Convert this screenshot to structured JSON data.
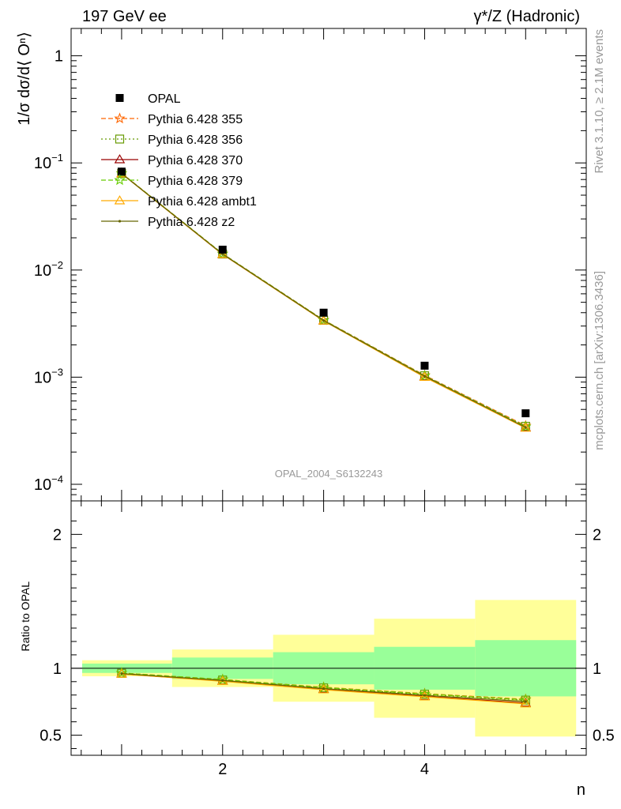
{
  "header": {
    "left": "197 GeV ee",
    "right": "γ*/Z (Hadronic)"
  },
  "side_labels": {
    "top": "Rivet 3.1.10, ≥ 2.1M events",
    "bottom": "mcplots.cern.ch [arXiv:1306.3436]"
  },
  "watermark": "OPAL_2004_S6132243",
  "colors": {
    "data": "#000000",
    "band_inner": "#99ff99",
    "band_outer": "#ffff99",
    "s355": "#ff6600",
    "s356": "#669900",
    "s370": "#990000",
    "s379": "#66cc00",
    "ambt1": "#ffaa00",
    "z2": "#666600"
  },
  "chart_data": [
    {
      "type": "scatter",
      "ylabel": "1/σ dσ/d⟨ Oⁿ⟩",
      "yscale": "log",
      "ylim": [
        7e-05,
        1.8
      ],
      "xlim": [
        0.5,
        5.6
      ],
      "y_ticks": [
        {
          "v": 1,
          "base": "1",
          "exp": ""
        },
        {
          "v": 0.1,
          "base": "10",
          "exp": "−1"
        },
        {
          "v": 0.01,
          "base": "10",
          "exp": "−2"
        },
        {
          "v": 0.001,
          "base": "10",
          "exp": "−3"
        },
        {
          "v": 0.0001,
          "base": "10",
          "exp": "−4"
        }
      ],
      "x": [
        1,
        2,
        3,
        4,
        5
      ],
      "data": {
        "name": "OPAL",
        "values": [
          0.083,
          0.0155,
          0.004,
          0.00128,
          0.00046
        ],
        "rel_err_inner": [
          0.035,
          0.08,
          0.12,
          0.16,
          0.19
        ],
        "rel_err_total": [
          0.06,
          0.14,
          0.25,
          0.37,
          0.51
        ]
      },
      "series": [
        {
          "name": "Pythia 6.428 355",
          "key": "s355",
          "marker": "star",
          "dash": "6,3",
          "values": [
            0.08,
            0.0142,
            0.00342,
            0.00104,
            0.000352
          ]
        },
        {
          "name": "Pythia 6.428 356",
          "key": "s356",
          "marker": "square",
          "dash": "2,3",
          "values": [
            0.0798,
            0.0141,
            0.0034,
            0.00103,
            0.000348
          ]
        },
        {
          "name": "Pythia 6.428 370",
          "key": "s370",
          "marker": "triangle",
          "dash": "",
          "values": [
            0.0795,
            0.014,
            0.00336,
            0.00101,
            0.000338
          ]
        },
        {
          "name": "Pythia 6.428 379",
          "key": "s379",
          "marker": "star",
          "dash": "6,3",
          "values": [
            0.0799,
            0.0142,
            0.0034,
            0.00103,
            0.000345
          ]
        },
        {
          "name": "Pythia 6.428 ambt1",
          "key": "ambt1",
          "marker": "triangle",
          "dash": "",
          "values": [
            0.0794,
            0.014,
            0.00335,
            0.001,
            0.000335
          ]
        },
        {
          "name": "Pythia 6.428 z2",
          "key": "z2",
          "marker": "dot",
          "dash": "",
          "values": [
            0.0796,
            0.0141,
            0.00338,
            0.00102,
            0.00034
          ]
        }
      ]
    },
    {
      "type": "scatter",
      "ylabel": "Ratio to OPAL",
      "xlabel": "n",
      "ylim": [
        0.35,
        2.25
      ],
      "xlim": [
        0.5,
        5.6
      ],
      "x_ticks": [
        "2",
        "4"
      ],
      "x_tick_values": [
        2,
        4
      ],
      "y_ticks": [
        "2",
        "1",
        "0.5"
      ],
      "y_tick_values": [
        2,
        1,
        0.5
      ],
      "reference": 1,
      "bands": [
        {
          "x": [
            0.5,
            1.5
          ],
          "inner": [
            0.965,
            1.035
          ],
          "outer": [
            0.94,
            1.06
          ]
        },
        {
          "x": [
            1.5,
            2.5
          ],
          "inner": [
            0.92,
            1.08
          ],
          "outer": [
            0.86,
            1.14
          ]
        },
        {
          "x": [
            2.5,
            3.5
          ],
          "inner": [
            0.88,
            1.12
          ],
          "outer": [
            0.75,
            1.25
          ]
        },
        {
          "x": [
            3.5,
            4.5
          ],
          "inner": [
            0.84,
            1.16
          ],
          "outer": [
            0.63,
            1.37
          ]
        },
        {
          "x": [
            4.5,
            5.5
          ],
          "inner": [
            0.79,
            1.21
          ],
          "outer": [
            0.49,
            1.51
          ]
        }
      ],
      "x": [
        1,
        2,
        3,
        4,
        5
      ],
      "series": [
        {
          "name": "Pythia 6.428 355",
          "key": "s355",
          "marker": "star",
          "dash": "6,3",
          "values": [
            0.965,
            0.916,
            0.858,
            0.81,
            0.768
          ]
        },
        {
          "name": "Pythia 6.428 356",
          "key": "s356",
          "marker": "square",
          "dash": "2,3",
          "values": [
            0.962,
            0.912,
            0.853,
            0.806,
            0.762
          ]
        },
        {
          "name": "Pythia 6.428 370",
          "key": "s370",
          "marker": "triangle",
          "dash": "",
          "values": [
            0.958,
            0.905,
            0.843,
            0.79,
            0.74
          ]
        },
        {
          "name": "Pythia 6.428 379",
          "key": "s379",
          "marker": "star",
          "dash": "6,3",
          "values": [
            0.964,
            0.915,
            0.856,
            0.808,
            0.765
          ]
        },
        {
          "name": "Pythia 6.428 ambt1",
          "key": "ambt1",
          "marker": "triangle",
          "dash": "",
          "values": [
            0.957,
            0.903,
            0.84,
            0.787,
            0.735
          ]
        },
        {
          "name": "Pythia 6.428 z2",
          "key": "z2",
          "marker": "dot",
          "dash": "",
          "values": [
            0.96,
            0.909,
            0.848,
            0.798,
            0.752
          ]
        }
      ]
    }
  ]
}
